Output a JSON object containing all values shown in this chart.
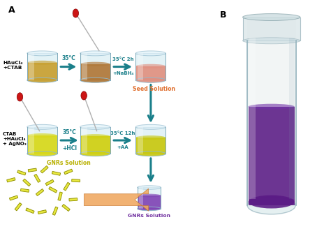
{
  "label_A": "A",
  "label_B": "B",
  "text_hauclctab": "HAuCl₄\n+CTAB",
  "text_ctab": "CTAB\n+HAuCl₄\n+ AgNO₃",
  "seed_label": "Seed Solution",
  "gnrs_label1": "GNRs Solution",
  "gnrs_label2": "GNRs Solution",
  "teal": "#1a7f8a",
  "seed_color": "#e07030",
  "gnrs_color": "#b8b000",
  "purple_text": "#7030a0",
  "bg_color": "#ffffff",
  "rod_color": "#e8e840",
  "rod_outline": "#909000"
}
